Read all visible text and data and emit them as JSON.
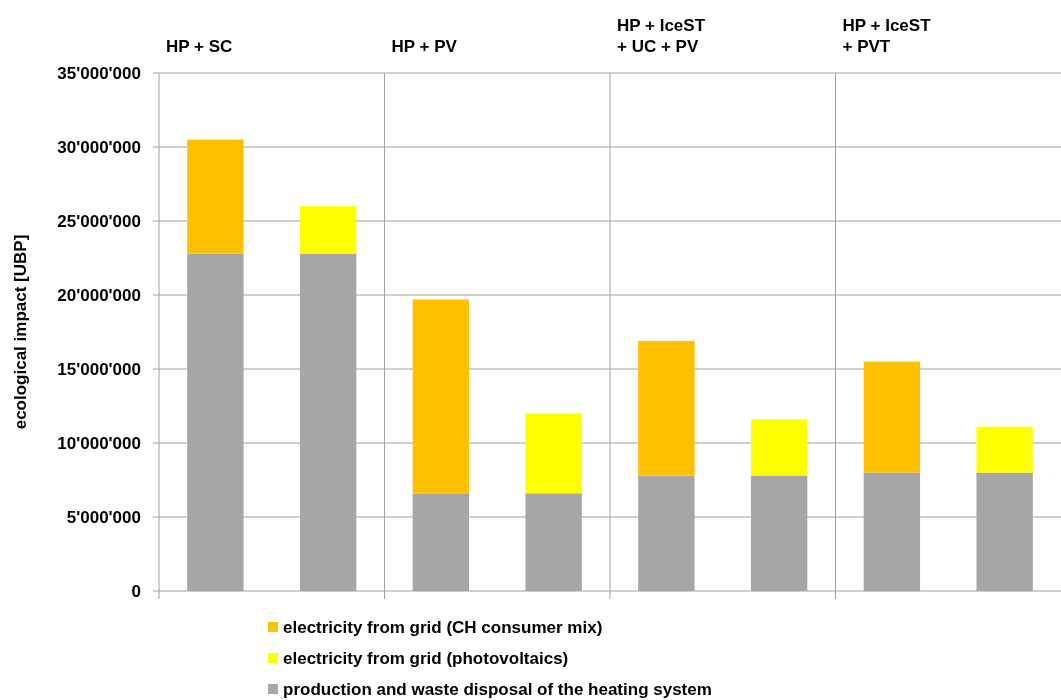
{
  "chart_data": {
    "type": "bar",
    "stacked": true,
    "ylabel": "ecological impact [UBP]",
    "categories": [
      null,
      null,
      null,
      null,
      null,
      null,
      null,
      null
    ],
    "annotations": [
      "HP + SC",
      "HP + PV",
      "HP + IceST + UC + PV",
      "HP + IceST + PVT"
    ],
    "series": [
      {
        "name": "production and waste disposal of the heating system",
        "color": "#a6a6a6",
        "values": [
          22800000,
          22800000,
          6600000,
          6600000,
          7800000,
          7800000,
          8000000,
          8000000
        ]
      },
      {
        "name": "electricity from grid (CH consumer mix)",
        "color": "#ffc000",
        "values": [
          7700000,
          null,
          13100000,
          null,
          9100000,
          null,
          7500000,
          null
        ]
      },
      {
        "name": "electricity from grid (photovoltaics)",
        "color": "#ffff00",
        "values": [
          null,
          3200000,
          null,
          5400000,
          null,
          3800000,
          null,
          3100000
        ]
      }
    ],
    "ylim": [
      0,
      35000000
    ],
    "yticks": [
      {
        "value": 0,
        "label": "0"
      },
      {
        "value": 5000000,
        "label": "5'000'000"
      },
      {
        "value": 10000000,
        "label": "10'000'000"
      },
      {
        "value": 15000000,
        "label": "15'000'000"
      },
      {
        "value": 20000000,
        "label": "20'000'000"
      },
      {
        "value": 25000000,
        "label": "25'000'000"
      },
      {
        "value": 30000000,
        "label": "30'000'000"
      },
      {
        "value": 35000000,
        "label": "35'000'000"
      }
    ],
    "grid": true,
    "legend": "bottom"
  }
}
